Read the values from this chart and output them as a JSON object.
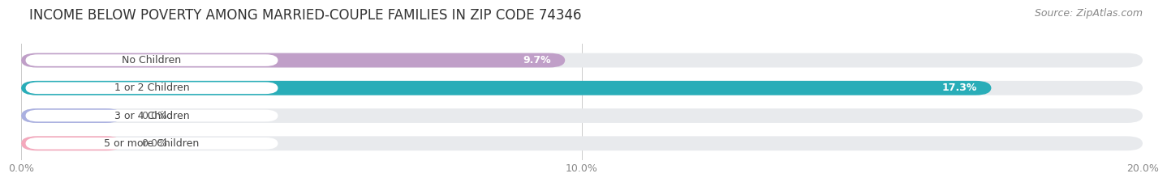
{
  "title": "INCOME BELOW POVERTY AMONG MARRIED-COUPLE FAMILIES IN ZIP CODE 74346",
  "source": "Source: ZipAtlas.com",
  "categories": [
    "No Children",
    "1 or 2 Children",
    "3 or 4 Children",
    "5 or more Children"
  ],
  "values": [
    9.7,
    17.3,
    0.0,
    0.0
  ],
  "bar_colors": [
    "#c09fc8",
    "#29adb8",
    "#aab0e0",
    "#f4a8bc"
  ],
  "xlim": [
    0,
    20.0
  ],
  "xtick_labels": [
    "0.0%",
    "10.0%",
    "20.0%"
  ],
  "bar_height": 0.52,
  "background_color": "#ffffff",
  "bar_bg_color": "#e8eaed",
  "title_fontsize": 12,
  "source_fontsize": 9,
  "label_fontsize": 9,
  "tick_fontsize": 9,
  "category_fontsize": 9,
  "zero_bar_width": 1.8
}
